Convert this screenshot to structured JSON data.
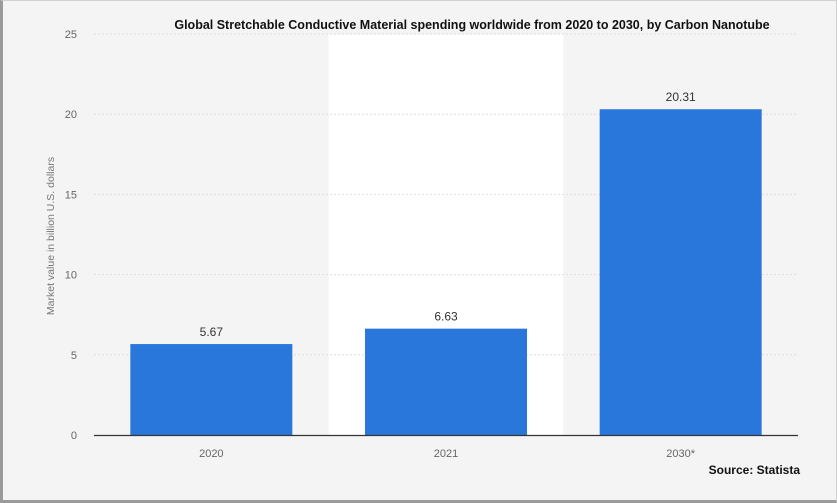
{
  "source": "Source: Statista",
  "colors": {
    "bar": "#2a77dc",
    "panel": "#f4f4f4",
    "highlight_band": "#ffffff",
    "grid": "#dddddd",
    "axis": "#333333"
  },
  "chart_data": {
    "type": "bar",
    "title": "Global Stretchable Conductive Material spending worldwide from 2020 to 2030, by Carbon Nanotube",
    "xlabel": "",
    "ylabel": "Market value in billion U.S. dollars",
    "categories": [
      "2020",
      "2021",
      "2030*"
    ],
    "values": [
      5.67,
      6.63,
      20.31
    ],
    "value_labels": [
      "5.67",
      "6.63",
      "20.31"
    ],
    "ylim": [
      0,
      25
    ],
    "yticks": [
      0,
      5,
      10,
      15,
      20,
      25
    ],
    "grid": true,
    "legend": "none"
  }
}
